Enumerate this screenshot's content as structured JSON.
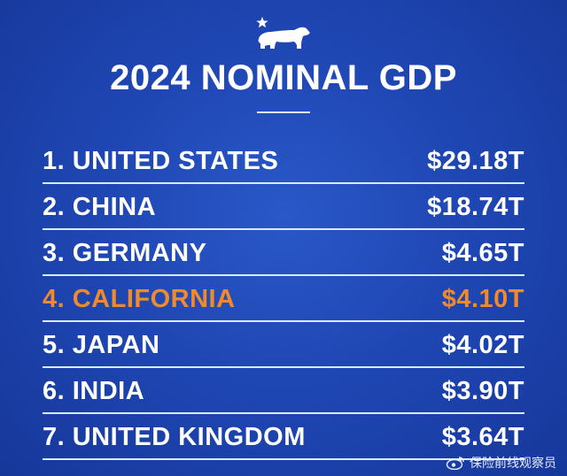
{
  "title": "2024 NOMINAL GDP",
  "rankings": [
    {
      "label": "1. UNITED STATES",
      "value": "$29.18T",
      "highlight": false
    },
    {
      "label": "2. CHINA",
      "value": "$18.74T",
      "highlight": false
    },
    {
      "label": "3. GERMANY",
      "value": "$4.65T",
      "highlight": false
    },
    {
      "label": "4. CALIFORNIA",
      "value": "$4.10T",
      "highlight": true
    },
    {
      "label": "5. JAPAN",
      "value": "$4.02T",
      "highlight": false
    },
    {
      "label": "6. INDIA",
      "value": "$3.90T",
      "highlight": false
    },
    {
      "label": "7. UNITED KINGDOM",
      "value": "$3.64T",
      "highlight": false
    }
  ],
  "watermark": "保险前线观察员",
  "colors": {
    "background": "#1f47b4",
    "text": "#ffffff",
    "highlight": "#f08a2a"
  },
  "icons": {
    "logo": "california-bear-star-icon",
    "watermark": "weibo-icon"
  }
}
